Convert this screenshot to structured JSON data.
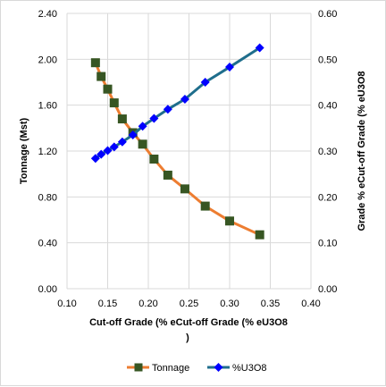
{
  "chart_data": {
    "type": "line",
    "title": "",
    "xlabel_line1": "Cut-off  Grade (% eCut-off  Grade (% eU3O8",
    "xlabel_line2": ")",
    "ylabel_left": "Tonnage  (Mst)",
    "ylabel_right": "Grade % eCut-off  Grade (% eU3O8",
    "xlim": [
      0.1,
      0.4
    ],
    "ylim_left": [
      0.0,
      2.4
    ],
    "ylim_right": [
      0.0,
      0.6
    ],
    "x_ticks": [
      "0.10",
      "0.15",
      "0.20",
      "0.25",
      "0.30",
      "0.35",
      "0.40"
    ],
    "y_left_ticks": [
      "0.00",
      "0.40",
      "0.80",
      "1.20",
      "1.60",
      "2.00",
      "2.40"
    ],
    "y_right_ticks": [
      "0.00",
      "0.10",
      "0.20",
      "0.30",
      "0.40",
      "0.50",
      "0.60"
    ],
    "grid": true,
    "legend_position": "bottom",
    "series": [
      {
        "name": "Tonnage",
        "axis": "left",
        "line_color": "#ED7D31",
        "marker": "square",
        "marker_color": "#375623",
        "x": [
          0.135,
          0.142,
          0.15,
          0.158,
          0.168,
          0.181,
          0.193,
          0.207,
          0.224,
          0.245,
          0.27,
          0.3,
          0.337
        ],
        "y": [
          1.97,
          1.85,
          1.74,
          1.62,
          1.48,
          1.36,
          1.26,
          1.13,
          0.99,
          0.87,
          0.72,
          0.59,
          0.47
        ]
      },
      {
        "name": "%U3O8",
        "axis": "right",
        "line_color": "#1F6E8C",
        "marker": "diamond",
        "marker_color": "#0000FF",
        "x": [
          0.135,
          0.142,
          0.15,
          0.158,
          0.168,
          0.181,
          0.193,
          0.207,
          0.224,
          0.245,
          0.27,
          0.3,
          0.337
        ],
        "y": [
          0.284,
          0.293,
          0.301,
          0.309,
          0.32,
          0.335,
          0.354,
          0.371,
          0.391,
          0.413,
          0.45,
          0.483,
          0.525
        ]
      }
    ]
  }
}
